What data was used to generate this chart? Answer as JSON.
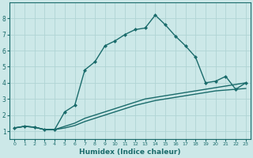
{
  "xlabel": "Humidex (Indice chaleur)",
  "bg_color": "#cce8e8",
  "grid_color": "#b0d4d4",
  "line_color": "#1a6b6b",
  "xlim": [
    -0.5,
    23.5
  ],
  "ylim": [
    0.5,
    9.0
  ],
  "xticks": [
    0,
    1,
    2,
    3,
    4,
    5,
    6,
    7,
    8,
    9,
    10,
    11,
    12,
    13,
    14,
    15,
    16,
    17,
    18,
    19,
    20,
    21,
    22,
    23
  ],
  "yticks": [
    1,
    2,
    3,
    4,
    5,
    6,
    7,
    8
  ],
  "curve1_x": [
    0,
    1,
    2,
    3,
    4,
    5,
    6,
    7,
    8,
    9,
    10,
    11,
    12,
    13,
    14,
    15,
    16,
    17,
    18,
    19,
    20,
    21,
    22,
    23
  ],
  "curve1_y": [
    1.2,
    1.3,
    1.25,
    1.1,
    1.1,
    2.2,
    2.6,
    4.8,
    5.3,
    6.3,
    6.6,
    7.0,
    7.3,
    7.4,
    8.2,
    7.6,
    6.9,
    6.3,
    5.6,
    4.0,
    4.1,
    4.4,
    3.6,
    4.0
  ],
  "curve2_x": [
    0,
    1,
    2,
    3,
    4,
    5,
    6,
    7,
    8,
    9,
    10,
    11,
    12,
    13,
    14,
    15,
    16,
    17,
    18,
    19,
    20,
    21,
    22,
    23
  ],
  "curve2_y": [
    1.2,
    1.3,
    1.25,
    1.1,
    1.1,
    1.3,
    1.5,
    1.8,
    2.0,
    2.2,
    2.4,
    2.6,
    2.8,
    3.0,
    3.1,
    3.2,
    3.3,
    3.4,
    3.5,
    3.6,
    3.7,
    3.8,
    3.9,
    4.0
  ],
  "curve3_x": [
    0,
    1,
    2,
    3,
    4,
    5,
    6,
    7,
    8,
    9,
    10,
    11,
    12,
    13,
    14,
    15,
    16,
    17,
    18,
    19,
    20,
    21,
    22,
    23
  ],
  "curve3_y": [
    1.2,
    1.3,
    1.25,
    1.1,
    1.1,
    1.2,
    1.35,
    1.6,
    1.8,
    2.0,
    2.2,
    2.4,
    2.6,
    2.75,
    2.9,
    3.0,
    3.1,
    3.2,
    3.3,
    3.4,
    3.5,
    3.55,
    3.6,
    3.65
  ]
}
